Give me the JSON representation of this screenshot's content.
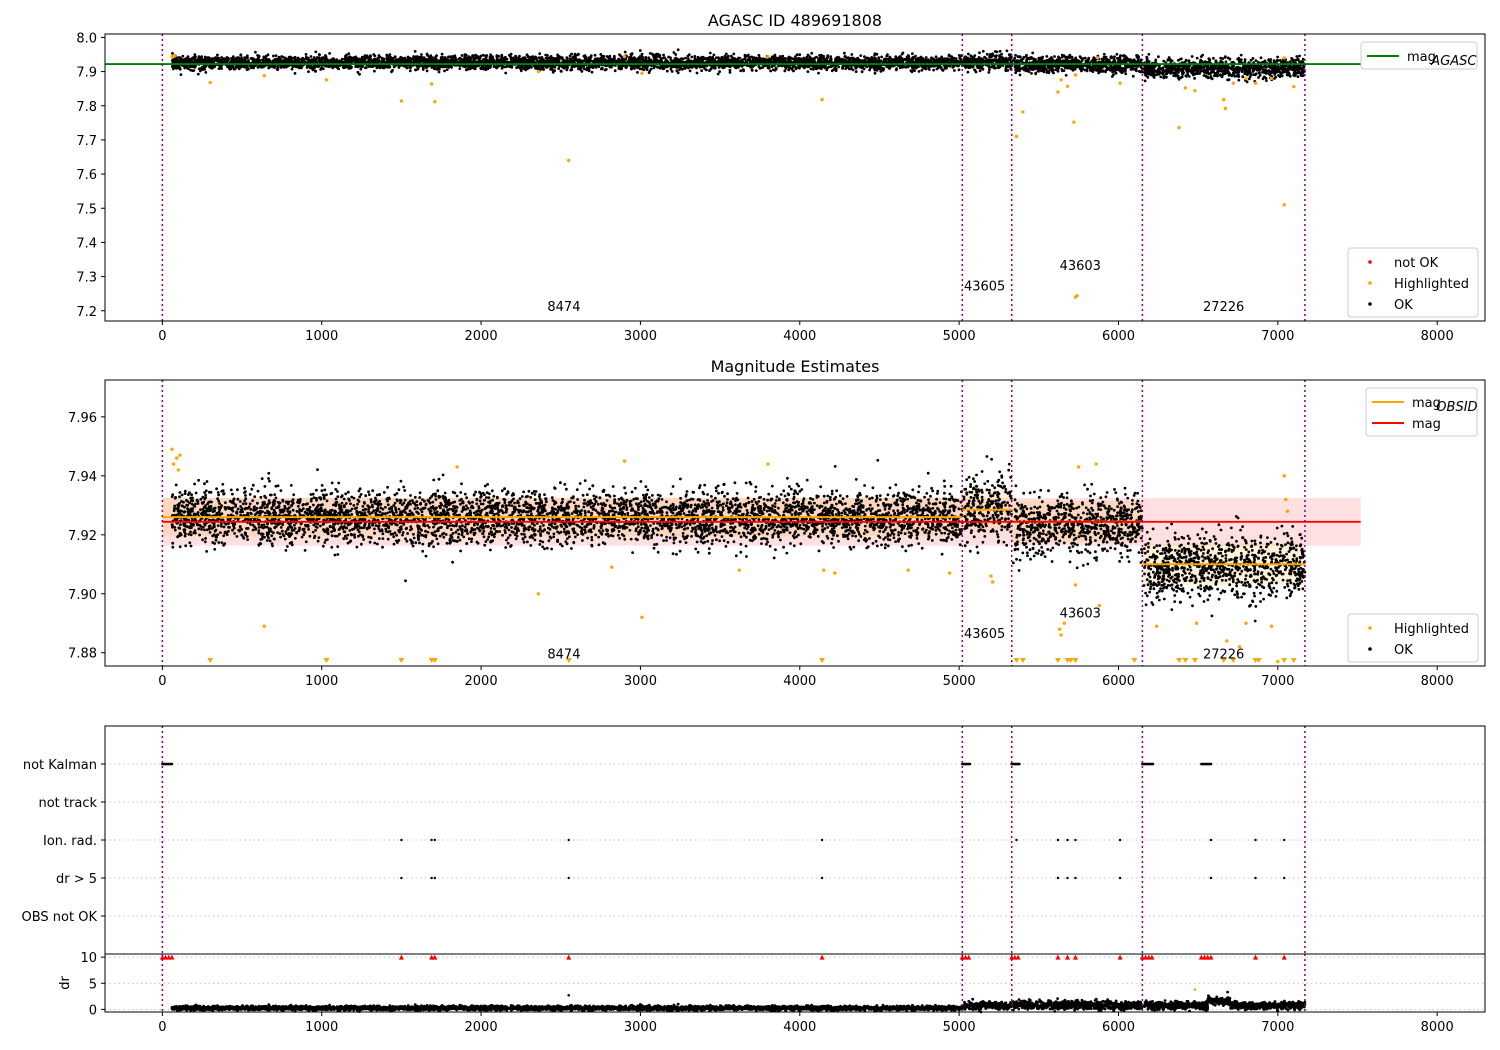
{
  "chart_data": [
    {
      "type": "scatter",
      "title": "AGASC ID 489691808",
      "xlim": [
        -360,
        8300
      ],
      "ylim": [
        7.17,
        8.01
      ],
      "xticks": [
        0,
        1000,
        2000,
        3000,
        4000,
        5000,
        6000,
        7000,
        8000
      ],
      "yticks": [
        7.2,
        7.3,
        7.4,
        7.5,
        7.6,
        7.7,
        7.8,
        7.9,
        8.0
      ],
      "ytick_labels": [
        "7.2",
        "7.3",
        "7.4",
        "7.5",
        "7.6",
        "7.7",
        "7.8",
        "7.9",
        "8.0"
      ],
      "xtick_labels": [
        "0",
        "1000",
        "2000",
        "3000",
        "4000",
        "5000",
        "6000",
        "7000",
        "8000"
      ],
      "obsid_boundaries": [
        0,
        5020,
        5330,
        6150,
        7170
      ],
      "annotations": [
        {
          "text": "8474",
          "x": 2520,
          "y": 7.2
        },
        {
          "text": "43605",
          "x": 5160,
          "y": 7.26
        },
        {
          "text": "43603",
          "x": 5760,
          "y": 7.32
        },
        {
          "text": "27226",
          "x": 6660,
          "y": 7.2
        }
      ],
      "reference_line": {
        "name": "mag_AGASC",
        "y": 7.922,
        "x": [
          -360,
          7520
        ],
        "color": "#008000"
      },
      "ok_segments": [
        {
          "x": [
            60,
            5020
          ],
          "center": 7.926,
          "spread": 0.01
        },
        {
          "x": [
            5030,
            5330
          ],
          "center": 7.928,
          "spread": 0.012
        },
        {
          "x": [
            5340,
            6150
          ],
          "center": 7.921,
          "spread": 0.012
        },
        {
          "x": [
            6160,
            7170
          ],
          "center": 7.909,
          "spread": 0.014
        }
      ],
      "highlighted_points": [
        {
          "x": 300,
          "y": 7.868
        },
        {
          "x": 640,
          "y": 7.888
        },
        {
          "x": 1030,
          "y": 7.876
        },
        {
          "x": 1500,
          "y": 7.814
        },
        {
          "x": 1690,
          "y": 7.864
        },
        {
          "x": 1710,
          "y": 7.812
        },
        {
          "x": 2360,
          "y": 7.9
        },
        {
          "x": 2550,
          "y": 7.64
        },
        {
          "x": 3010,
          "y": 7.895
        },
        {
          "x": 4140,
          "y": 7.818
        },
        {
          "x": 5360,
          "y": 7.71
        },
        {
          "x": 5400,
          "y": 7.782
        },
        {
          "x": 5620,
          "y": 7.84
        },
        {
          "x": 5640,
          "y": 7.876
        },
        {
          "x": 5680,
          "y": 7.857
        },
        {
          "x": 5720,
          "y": 7.752
        },
        {
          "x": 5730,
          "y": 7.24
        },
        {
          "x": 5740,
          "y": 7.244
        },
        {
          "x": 5730,
          "y": 7.89
        },
        {
          "x": 6010,
          "y": 7.866
        },
        {
          "x": 6380,
          "y": 7.736
        },
        {
          "x": 6420,
          "y": 7.852
        },
        {
          "x": 6480,
          "y": 7.844
        },
        {
          "x": 6660,
          "y": 7.818
        },
        {
          "x": 6670,
          "y": 7.792
        },
        {
          "x": 6720,
          "y": 7.866
        },
        {
          "x": 6800,
          "y": 7.88
        },
        {
          "x": 6860,
          "y": 7.866
        },
        {
          "x": 6960,
          "y": 7.88
        },
        {
          "x": 7040,
          "y": 7.51
        },
        {
          "x": 7040,
          "y": 7.94
        },
        {
          "x": 7100,
          "y": 7.856
        },
        {
          "x": 60,
          "y": 7.944
        },
        {
          "x": 80,
          "y": 7.946
        },
        {
          "x": 2900,
          "y": 7.944
        },
        {
          "x": 3800,
          "y": 7.944
        },
        {
          "x": 5870,
          "y": 7.94
        }
      ],
      "legends": [
        {
          "placement": "top-right",
          "entries": [
            {
              "label": "mag",
              "subscript": "AGASC",
              "color": "#008000",
              "kind": "line"
            }
          ]
        },
        {
          "placement": "lower-right",
          "entries": [
            {
              "label": "not OK",
              "color": "#ff0000",
              "kind": "dot"
            },
            {
              "label": "Highlighted",
              "color": "#ffa500",
              "kind": "dot"
            },
            {
              "label": "OK",
              "color": "#000000",
              "kind": "dot"
            }
          ]
        }
      ]
    },
    {
      "type": "scatter",
      "title": "Magnitude Estimates",
      "xlim": [
        -360,
        8300
      ],
      "ylim": [
        7.8755,
        7.9725
      ],
      "xticks": [
        0,
        1000,
        2000,
        3000,
        4000,
        5000,
        6000,
        7000,
        8000
      ],
      "yticks": [
        7.88,
        7.9,
        7.92,
        7.94,
        7.96
      ],
      "ytick_labels": [
        "7.88",
        "7.90",
        "7.92",
        "7.94",
        "7.96"
      ],
      "xtick_labels": [
        "0",
        "1000",
        "2000",
        "3000",
        "4000",
        "5000",
        "6000",
        "7000",
        "8000"
      ],
      "obsid_boundaries": [
        0,
        5020,
        5330,
        6150,
        7170
      ],
      "annotations": [
        {
          "text": "8474",
          "x": 2520,
          "y": 7.878
        },
        {
          "text": "43605",
          "x": 5160,
          "y": 7.885
        },
        {
          "text": "43603",
          "x": 5760,
          "y": 7.892
        },
        {
          "text": "27226",
          "x": 6660,
          "y": 7.878
        }
      ],
      "mag_line": {
        "name": "mag",
        "y": 7.9244,
        "band": [
          7.9163,
          7.9325
        ],
        "x": [
          0,
          7520
        ],
        "color": "#ff0000"
      },
      "obsid_mags": [
        {
          "x": [
            0,
            5020
          ],
          "y": 7.926,
          "band": [
            7.9195,
            7.9325
          ]
        },
        {
          "x": [
            5020,
            5330
          ],
          "y": 7.9285,
          "band": [
            7.9215,
            7.9355
          ]
        },
        {
          "x": [
            5330,
            6150
          ],
          "y": 7.9245,
          "band": [
            7.9175,
            7.9315
          ]
        },
        {
          "x": [
            6150,
            7170
          ],
          "y": 7.91,
          "band": [
            7.903,
            7.917
          ]
        }
      ],
      "ok_segments": [
        {
          "x": [
            60,
            5020
          ],
          "center": 7.926,
          "spread": 0.0045
        },
        {
          "x": [
            5030,
            5330
          ],
          "center": 7.929,
          "spread": 0.0055
        },
        {
          "x": [
            5340,
            6150
          ],
          "center": 7.923,
          "spread": 0.005
        },
        {
          "x": [
            6160,
            7170
          ],
          "center": 7.909,
          "spread": 0.0055
        }
      ],
      "highlighted_points": [
        {
          "x": 60,
          "y": 7.949
        },
        {
          "x": 70,
          "y": 7.944
        },
        {
          "x": 90,
          "y": 7.946
        },
        {
          "x": 110,
          "y": 7.947
        },
        {
          "x": 100,
          "y": 7.942
        },
        {
          "x": 640,
          "y": 7.889
        },
        {
          "x": 1850,
          "y": 7.943
        },
        {
          "x": 2360,
          "y": 7.9
        },
        {
          "x": 2820,
          "y": 7.909
        },
        {
          "x": 2900,
          "y": 7.945
        },
        {
          "x": 3010,
          "y": 7.892
        },
        {
          "x": 3620,
          "y": 7.908
        },
        {
          "x": 3800,
          "y": 7.944
        },
        {
          "x": 4150,
          "y": 7.908
        },
        {
          "x": 4220,
          "y": 7.907
        },
        {
          "x": 4680,
          "y": 7.908
        },
        {
          "x": 4940,
          "y": 7.907
        },
        {
          "x": 5200,
          "y": 7.906
        },
        {
          "x": 5210,
          "y": 7.904
        },
        {
          "x": 5630,
          "y": 7.888
        },
        {
          "x": 5640,
          "y": 7.886
        },
        {
          "x": 5660,
          "y": 7.89
        },
        {
          "x": 5730,
          "y": 7.903
        },
        {
          "x": 5750,
          "y": 7.943
        },
        {
          "x": 5860,
          "y": 7.944
        },
        {
          "x": 5880,
          "y": 7.896
        },
        {
          "x": 6240,
          "y": 7.889
        },
        {
          "x": 6490,
          "y": 7.89
        },
        {
          "x": 6680,
          "y": 7.884
        },
        {
          "x": 6760,
          "y": 7.882
        },
        {
          "x": 6800,
          "y": 7.89
        },
        {
          "x": 6960,
          "y": 7.889
        },
        {
          "x": 7000,
          "y": 7.877
        },
        {
          "x": 7040,
          "y": 7.94
        },
        {
          "x": 7050,
          "y": 7.932
        },
        {
          "x": 7060,
          "y": 7.928
        }
      ],
      "out_of_range_markers_x": [
        300,
        1030,
        1500,
        1690,
        1710,
        2550,
        4140,
        5360,
        5400,
        5620,
        5680,
        5700,
        5730,
        6100,
        6380,
        6420,
        6480,
        6660,
        6720,
        6860,
        6880,
        7040,
        7100
      ],
      "legends": [
        {
          "placement": "top-right",
          "entries": [
            {
              "label": "mag",
              "subscript": "OBSID",
              "color": "#ffa500",
              "kind": "line"
            },
            {
              "label": "mag",
              "subscript": "",
              "color": "#ff0000",
              "kind": "line"
            }
          ]
        },
        {
          "placement": "lower-right",
          "entries": [
            {
              "label": "Highlighted",
              "color": "#ffa500",
              "kind": "dot"
            },
            {
              "label": "OK",
              "color": "#000000",
              "kind": "dot"
            }
          ]
        }
      ]
    },
    {
      "type": "scatter",
      "xlim": [
        -360,
        8300
      ],
      "categories": [
        "not Kalman",
        "not track",
        "Ion. rad.",
        "dr > 5",
        "OBS not OK"
      ],
      "obsid_boundaries": [
        0,
        5020,
        5330,
        6150,
        7170
      ],
      "flag_ranges": {
        "not Kalman": [
          [
            0,
            60
          ],
          [
            5020,
            5070
          ],
          [
            5330,
            5380
          ],
          [
            6150,
            6220
          ],
          [
            6520,
            6580
          ]
        ],
        "not track": [],
        "Ion. rad.": [
          [
            1500,
            1500
          ],
          [
            1690,
            1690
          ],
          [
            1710,
            1710
          ],
          [
            2550,
            2550
          ],
          [
            4140,
            4140
          ],
          [
            5360,
            5360
          ],
          [
            5620,
            5620
          ],
          [
            5680,
            5680
          ],
          [
            5730,
            5730
          ],
          [
            6010,
            6010
          ],
          [
            6580,
            6580
          ],
          [
            6860,
            6860
          ],
          [
            7040,
            7040
          ]
        ],
        "dr > 5": [
          [
            1500,
            1500
          ],
          [
            1690,
            1690
          ],
          [
            1710,
            1710
          ],
          [
            2550,
            2550
          ],
          [
            4140,
            4140
          ],
          [
            5620,
            5620
          ],
          [
            5680,
            5680
          ],
          [
            5730,
            5730
          ],
          [
            6010,
            6010
          ],
          [
            6580,
            6580
          ],
          [
            6860,
            6860
          ],
          [
            7040,
            7040
          ]
        ],
        "OBS not OK": []
      }
    },
    {
      "type": "scatter",
      "ylabel": "dr",
      "xlim": [
        -360,
        8300
      ],
      "ylim": [
        -0.5,
        10.6
      ],
      "yticks": [
        0,
        5,
        10
      ],
      "ytick_labels": [
        "0",
        "5",
        "10"
      ],
      "xticks": [
        0,
        1000,
        2000,
        3000,
        4000,
        5000,
        6000,
        7000,
        8000
      ],
      "xtick_labels": [
        "0",
        "1000",
        "2000",
        "3000",
        "4000",
        "5000",
        "6000",
        "7000",
        "8000"
      ],
      "obsid_boundaries": [
        0,
        5020,
        5330,
        6150,
        7170
      ],
      "ok_segments": [
        {
          "x": [
            60,
            5020
          ],
          "center": 0.25,
          "spread": 0.2
        },
        {
          "x": [
            5030,
            5330
          ],
          "center": 0.7,
          "spread": 0.35
        },
        {
          "x": [
            5340,
            6150
          ],
          "center": 0.8,
          "spread": 0.4
        },
        {
          "x": [
            6160,
            6560
          ],
          "center": 0.7,
          "spread": 0.35
        },
        {
          "x": [
            6560,
            6700
          ],
          "center": 1.6,
          "spread": 0.4
        },
        {
          "x": [
            6700,
            7170
          ],
          "center": 0.7,
          "spread": 0.35
        }
      ],
      "extra_points": [
        {
          "x": 2550,
          "y": 2.7,
          "color": "#000000"
        },
        {
          "x": 1720,
          "y": 0.6,
          "color": "#000000"
        },
        {
          "x": 6480,
          "y": 3.8,
          "color": "#ffa500"
        }
      ],
      "capped_points_x": [
        0,
        20,
        40,
        60,
        1500,
        1690,
        1710,
        2550,
        4140,
        5020,
        5040,
        5060,
        5330,
        5350,
        5370,
        5620,
        5680,
        5730,
        6010,
        6150,
        6170,
        6190,
        6210,
        6520,
        6540,
        6560,
        6580,
        6860,
        7040
      ]
    }
  ]
}
